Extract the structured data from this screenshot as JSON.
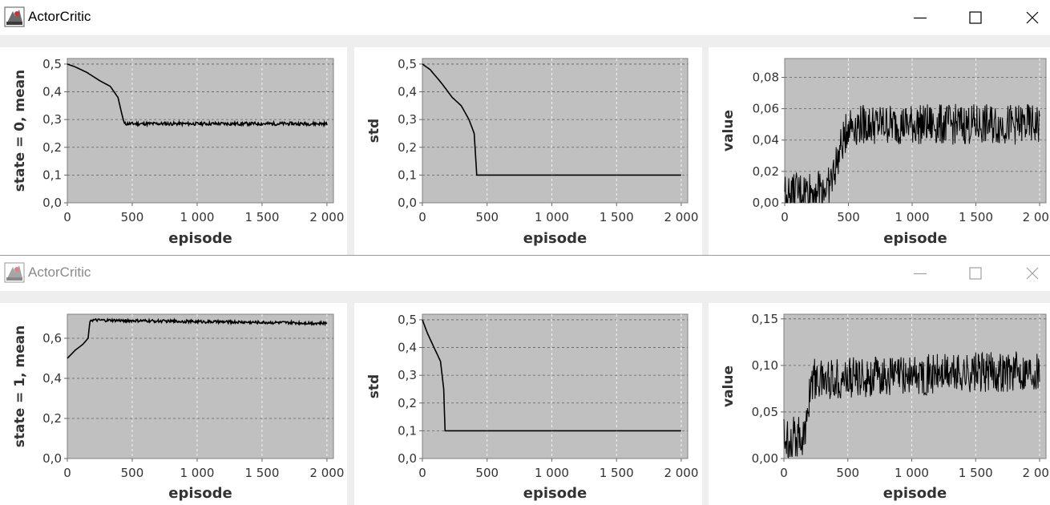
{
  "windows": [
    {
      "title": "ActorCritic",
      "active": true,
      "charts": [
        {
          "ylabel": "state = 0, mean",
          "xlabel": "episode",
          "yticks": [
            "0,0",
            "0,1",
            "0,2",
            "0,3",
            "0,4",
            "0,5"
          ],
          "xticks": [
            "0",
            "500",
            "1 000",
            "1 500",
            "2 000"
          ]
        },
        {
          "ylabel": "std",
          "xlabel": "episode",
          "yticks": [
            "0,0",
            "0,1",
            "0,2",
            "0,3",
            "0,4",
            "0,5"
          ],
          "xticks": [
            "0",
            "500",
            "1 000",
            "1 500",
            "2 000"
          ]
        },
        {
          "ylabel": "value",
          "xlabel": "episode",
          "yticks": [
            "0,00",
            "0,02",
            "0,04",
            "0,06",
            "0,08"
          ],
          "xticks": [
            "0",
            "500",
            "1 000",
            "1 500",
            "2 000"
          ]
        }
      ]
    },
    {
      "title": "ActorCritic",
      "active": false,
      "charts": [
        {
          "ylabel": "state = 1, mean",
          "xlabel": "episode",
          "yticks": [
            "0,0",
            "0,2",
            "0,4",
            "0,6"
          ],
          "xticks": [
            "0",
            "500",
            "1 000",
            "1 500",
            "2 000"
          ]
        },
        {
          "ylabel": "std",
          "xlabel": "episode",
          "yticks": [
            "0,0",
            "0,1",
            "0,2",
            "0,3",
            "0,4",
            "0,5"
          ],
          "xticks": [
            "0",
            "500",
            "1 000",
            "1 500",
            "2 000"
          ]
        },
        {
          "ylabel": "value",
          "xlabel": "episode",
          "yticks": [
            "0,00",
            "0,05",
            "0,10",
            "0,15"
          ],
          "xticks": [
            "0",
            "500",
            "1 000",
            "1 500",
            "2 000"
          ]
        }
      ]
    }
  ],
  "chart_data": [
    {
      "type": "line",
      "xlabel": "episode",
      "ylabel": "state = 0, mean",
      "xlim": [
        0,
        2050
      ],
      "ylim": [
        0,
        0.52
      ],
      "grid": true,
      "series": [
        {
          "values": {
            "profile": [
              [
                0,
                0.5
              ],
              [
                60,
                0.49
              ],
              [
                150,
                0.47
              ],
              [
                250,
                0.44
              ],
              [
                330,
                0.42
              ],
              [
                390,
                0.38
              ],
              [
                420,
                0.32
              ],
              [
                440,
                0.285
              ],
              [
                2000,
                0.285
              ]
            ],
            "noise": 0.006,
            "noise_from": 440
          }
        }
      ]
    },
    {
      "type": "line",
      "xlabel": "episode",
      "ylabel": "std",
      "xlim": [
        0,
        2050
      ],
      "ylim": [
        0,
        0.52
      ],
      "grid": true,
      "series": [
        {
          "values": {
            "profile": [
              [
                0,
                0.5
              ],
              [
                60,
                0.48
              ],
              [
                150,
                0.43
              ],
              [
                230,
                0.38
              ],
              [
                300,
                0.35
              ],
              [
                360,
                0.3
              ],
              [
                400,
                0.25
              ],
              [
                420,
                0.1
              ],
              [
                2000,
                0.1
              ]
            ],
            "noise": 0,
            "noise_from": 0
          }
        }
      ]
    },
    {
      "type": "line",
      "xlabel": "episode",
      "ylabel": "value",
      "xlim": [
        0,
        2050
      ],
      "ylim": [
        0,
        0.092
      ],
      "grid": true,
      "series": [
        {
          "values": {
            "profile": [
              [
                0,
                0.005
              ],
              [
                350,
                0.01
              ],
              [
                500,
                0.05
              ],
              [
                2000,
                0.05
              ]
            ],
            "noise": 0.013,
            "noise_from": 0
          }
        }
      ]
    },
    {
      "type": "line",
      "xlabel": "episode",
      "ylabel": "state = 1, mean",
      "xlim": [
        0,
        2050
      ],
      "ylim": [
        0,
        0.72
      ],
      "grid": true,
      "series": [
        {
          "values": {
            "profile": [
              [
                0,
                0.5
              ],
              [
                60,
                0.54
              ],
              [
                120,
                0.57
              ],
              [
                160,
                0.6
              ],
              [
                175,
                0.69
              ],
              [
                2000,
                0.675
              ]
            ],
            "noise": 0.007,
            "noise_from": 175
          }
        }
      ]
    },
    {
      "type": "line",
      "xlabel": "episode",
      "ylabel": "std",
      "xlim": [
        0,
        2050
      ],
      "ylim": [
        0,
        0.52
      ],
      "grid": true,
      "series": [
        {
          "values": {
            "profile": [
              [
                0,
                0.5
              ],
              [
                40,
                0.45
              ],
              [
                90,
                0.4
              ],
              [
                140,
                0.35
              ],
              [
                165,
                0.25
              ],
              [
                175,
                0.1
              ],
              [
                2000,
                0.1
              ]
            ],
            "noise": 0,
            "noise_from": 0
          }
        }
      ]
    },
    {
      "type": "line",
      "xlabel": "episode",
      "ylabel": "value",
      "xlim": [
        0,
        2050
      ],
      "ylim": [
        0,
        0.155
      ],
      "grid": true,
      "series": [
        {
          "values": {
            "profile": [
              [
                0,
                0.022
              ],
              [
                170,
                0.025
              ],
              [
                210,
                0.085
              ],
              [
                2000,
                0.095
              ]
            ],
            "noise": 0.022,
            "noise_from": 0
          }
        }
      ]
    }
  ],
  "colors": {
    "plot_bg": "#c0c0c0",
    "grid": "#606060",
    "line": "#000000",
    "text": "#333333",
    "window_bg": "#eeeeee"
  }
}
